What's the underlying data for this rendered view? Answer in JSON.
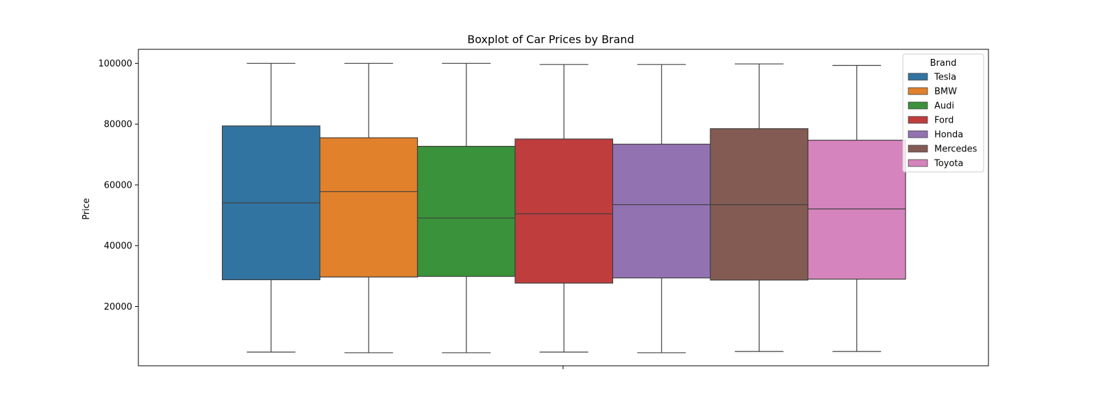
{
  "chart_data": {
    "type": "box",
    "title": "Boxplot of Car Prices by Brand",
    "xlabel": "",
    "ylabel": "Price",
    "ylim": [
      500,
      104600
    ],
    "yticks": [
      20000,
      40000,
      60000,
      80000,
      100000
    ],
    "grid": false,
    "legend": {
      "title": "Brand",
      "placement": "top-right"
    },
    "series": [
      {
        "name": "Tesla",
        "color": "#3274a1",
        "whisker_low": 5000,
        "q1": 28800,
        "median": 54100,
        "q3": 79400,
        "whisker_high": 100000
      },
      {
        "name": "BMW",
        "color": "#e1812c",
        "whisker_low": 4800,
        "q1": 29700,
        "median": 57800,
        "q3": 75500,
        "whisker_high": 100000
      },
      {
        "name": "Audi",
        "color": "#3a923a",
        "whisker_low": 4800,
        "q1": 29900,
        "median": 49100,
        "q3": 72700,
        "whisker_high": 100000
      },
      {
        "name": "Ford",
        "color": "#c03d3e",
        "whisker_low": 5000,
        "q1": 27700,
        "median": 50500,
        "q3": 75100,
        "whisker_high": 99600
      },
      {
        "name": "Honda",
        "color": "#9372b2",
        "whisker_low": 4800,
        "q1": 29400,
        "median": 53500,
        "q3": 73400,
        "whisker_high": 99600
      },
      {
        "name": "Mercedes",
        "color": "#845b53",
        "whisker_low": 5200,
        "q1": 28700,
        "median": 53500,
        "q3": 78500,
        "whisker_high": 99800
      },
      {
        "name": "Toyota",
        "color": "#d684bd",
        "whisker_low": 5200,
        "q1": 29000,
        "median": 52100,
        "q3": 74700,
        "whisker_high": 99300
      }
    ]
  }
}
